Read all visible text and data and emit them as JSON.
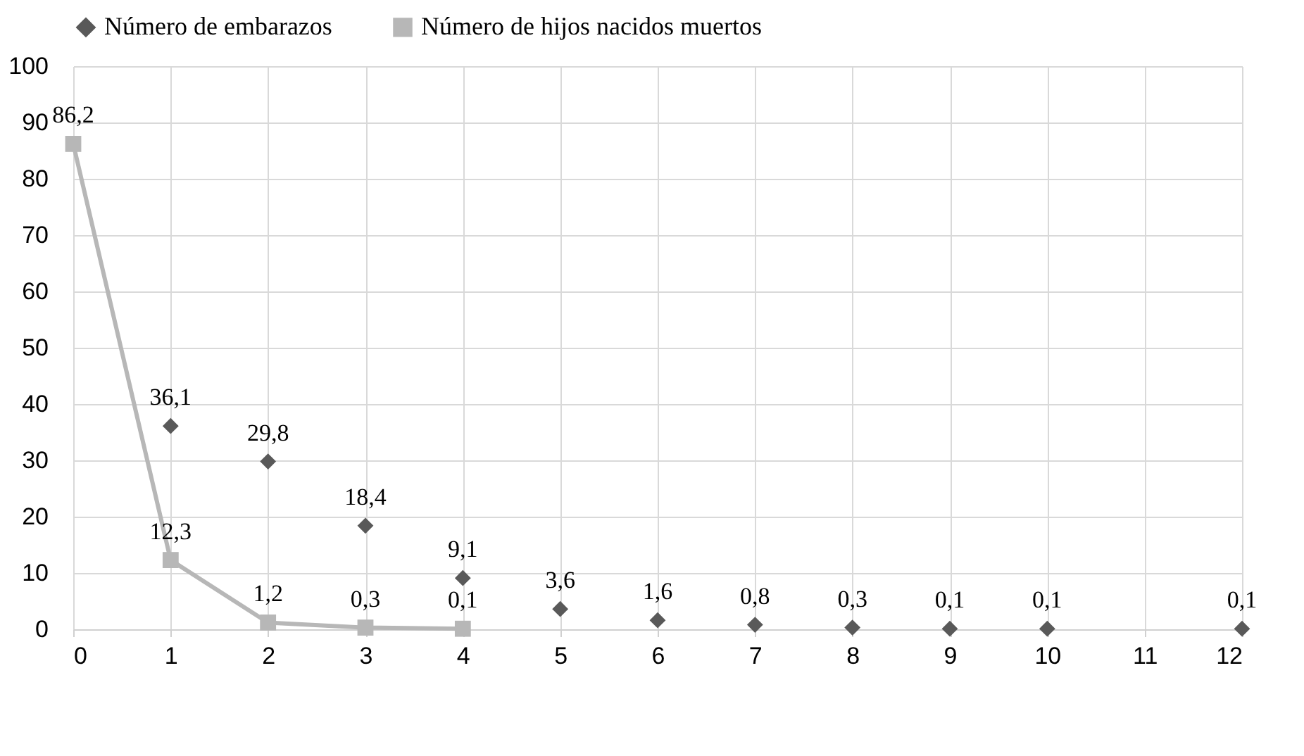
{
  "chart_data": {
    "type": "scatter",
    "xlim": [
      0,
      12
    ],
    "xticks": [
      0,
      1,
      2,
      3,
      4,
      5,
      6,
      7,
      8,
      9,
      10,
      11,
      12
    ],
    "ylim": [
      0,
      100
    ],
    "yticks": [
      0,
      10,
      20,
      30,
      40,
      50,
      60,
      70,
      80,
      90,
      100
    ],
    "grid": true,
    "legend": "top",
    "series": [
      {
        "name": "Número de embarazos",
        "marker": "diamond",
        "color": "#595959",
        "x": [
          1,
          2,
          3,
          4,
          5,
          6,
          7,
          8,
          9,
          10,
          12
        ],
        "values": [
          36.1,
          29.8,
          18.4,
          9.1,
          3.6,
          1.6,
          0.8,
          0.3,
          0.1,
          0.1,
          0.1
        ],
        "value_labels": [
          "36,1",
          "29,8",
          "18,4",
          "9,1",
          "3,6",
          "1,6",
          "0,8",
          "0,3",
          "0,1",
          "0,1",
          "0,1"
        ]
      },
      {
        "name": "Número de hijos nacidos muertos",
        "type": "line",
        "marker": "square",
        "color": "#b7b7b7",
        "x": [
          0,
          1,
          2,
          3,
          4
        ],
        "values": [
          86.2,
          12.3,
          1.2,
          0.3,
          0.1
        ],
        "value_labels": [
          "86,2",
          "12,3",
          "1,2",
          "0,3",
          "0,1"
        ]
      }
    ]
  }
}
